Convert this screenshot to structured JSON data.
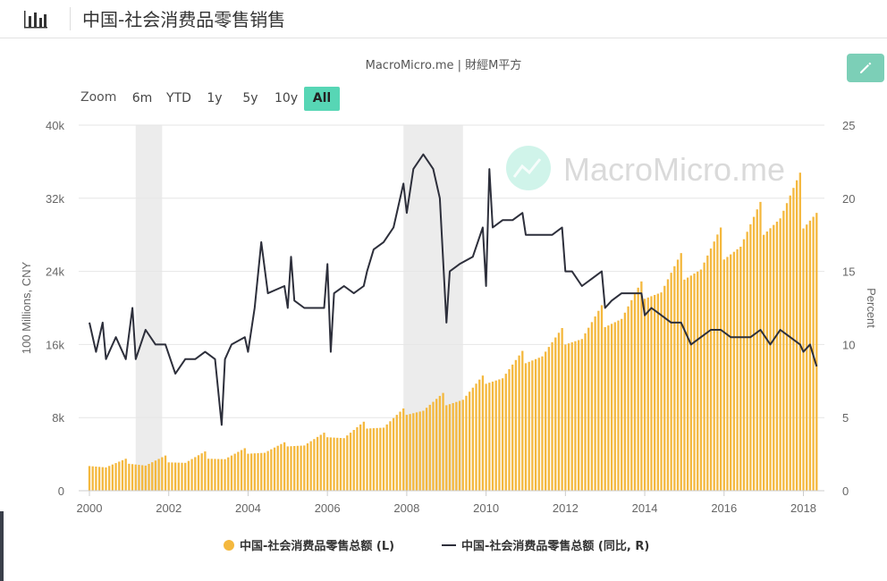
{
  "header": {
    "title": "中国-社会消费品零售销售",
    "chart_icon": "bar-chart-icon"
  },
  "source_label": "MacroMicro.me | 財經M平方",
  "watermark": "MacroMicro.me",
  "edit_icon": "pencil-icon",
  "zoom": {
    "label": "Zoom",
    "buttons": [
      "6m",
      "YTD",
      "1y",
      "5y",
      "10y",
      "All"
    ],
    "active": "All"
  },
  "colors": {
    "bars": "#f4b83e",
    "line": "#2d2f3b",
    "recession": "#e6e6e6",
    "accent": "#57d6b5"
  },
  "chart_data": {
    "type": "bar+line",
    "xlabel": "",
    "ylabel_left": "100 Millions, CNY",
    "ylabel_right": "Percent",
    "x_ticks": [
      "2000",
      "2002",
      "2004",
      "2006",
      "2008",
      "2010",
      "2012",
      "2014",
      "2016",
      "2018"
    ],
    "y_left_ticks": [
      "0",
      "8k",
      "16k",
      "24k",
      "32k",
      "40k"
    ],
    "y_right_ticks": [
      "0",
      "5",
      "10",
      "15",
      "20",
      "25"
    ],
    "ylim_left": [
      0,
      40000
    ],
    "ylim_right": [
      0,
      25
    ],
    "xlim": [
      "2000-01",
      "2018-06"
    ],
    "shaded_periods": [
      [
        "2001-03",
        "2001-11"
      ],
      [
        "2007-12",
        "2009-06"
      ]
    ],
    "legend": [
      "中国-社会消费品零售总额 (L)",
      "中国-社会消费品零售总额 (同比, R)"
    ],
    "series": [
      {
        "name": "中国-社会消费品零售总额 (L)",
        "axis": "left",
        "kind": "bar",
        "points": [
          [
            "2000-01",
            2700
          ],
          [
            "2000-06",
            2550
          ],
          [
            "2000-12",
            3500
          ],
          [
            "2001-01",
            2950
          ],
          [
            "2001-06",
            2750
          ],
          [
            "2001-12",
            3850
          ],
          [
            "2002-01",
            3100
          ],
          [
            "2002-06",
            3050
          ],
          [
            "2002-12",
            4300
          ],
          [
            "2003-01",
            3500
          ],
          [
            "2003-06",
            3450
          ],
          [
            "2003-12",
            4650
          ],
          [
            "2004-01",
            4050
          ],
          [
            "2004-06",
            4150
          ],
          [
            "2004-12",
            5300
          ],
          [
            "2005-01",
            4850
          ],
          [
            "2005-06",
            4950
          ],
          [
            "2005-12",
            6350
          ],
          [
            "2006-01",
            5850
          ],
          [
            "2006-06",
            5750
          ],
          [
            "2006-12",
            7550
          ],
          [
            "2007-01",
            6800
          ],
          [
            "2007-06",
            6900
          ],
          [
            "2007-12",
            9000
          ],
          [
            "2008-01",
            8300
          ],
          [
            "2008-06",
            8750
          ],
          [
            "2008-12",
            10700
          ],
          [
            "2009-01",
            9350
          ],
          [
            "2009-06",
            9950
          ],
          [
            "2009-12",
            12600
          ],
          [
            "2010-01",
            11700
          ],
          [
            "2010-06",
            12300
          ],
          [
            "2010-12",
            15300
          ],
          [
            "2011-01",
            13950
          ],
          [
            "2011-06",
            14700
          ],
          [
            "2011-12",
            17800
          ],
          [
            "2012-01",
            16000
          ],
          [
            "2012-06",
            16600
          ],
          [
            "2012-12",
            20300
          ],
          [
            "2013-01",
            17900
          ],
          [
            "2013-06",
            18800
          ],
          [
            "2013-12",
            22900
          ],
          [
            "2014-01",
            21000
          ],
          [
            "2014-06",
            21700
          ],
          [
            "2014-12",
            26000
          ],
          [
            "2015-01",
            23100
          ],
          [
            "2015-06",
            24200
          ],
          [
            "2015-12",
            28800
          ],
          [
            "2016-01",
            25300
          ],
          [
            "2016-06",
            26700
          ],
          [
            "2016-12",
            31600
          ],
          [
            "2017-01",
            28000
          ],
          [
            "2017-06",
            29800
          ],
          [
            "2017-12",
            34800
          ],
          [
            "2018-01",
            28700
          ],
          [
            "2018-05",
            30400
          ]
        ]
      },
      {
        "name": "中国-社会消费品零售总额 (同比, R)",
        "axis": "right",
        "kind": "line",
        "points": [
          [
            "2000-01",
            11.5
          ],
          [
            "2000-03",
            9.5
          ],
          [
            "2000-05",
            11.5
          ],
          [
            "2000-06",
            9.0
          ],
          [
            "2000-09",
            10.5
          ],
          [
            "2000-12",
            9.0
          ],
          [
            "2001-02",
            12.5
          ],
          [
            "2001-03",
            9.0
          ],
          [
            "2001-06",
            11.0
          ],
          [
            "2001-09",
            10.0
          ],
          [
            "2001-12",
            10.0
          ],
          [
            "2002-03",
            8.0
          ],
          [
            "2002-06",
            9.0
          ],
          [
            "2002-09",
            9.0
          ],
          [
            "2002-12",
            9.5
          ],
          [
            "2003-03",
            9.0
          ],
          [
            "2003-05",
            4.5
          ],
          [
            "2003-06",
            9.0
          ],
          [
            "2003-08",
            10.0
          ],
          [
            "2003-12",
            10.5
          ],
          [
            "2004-01",
            9.5
          ],
          [
            "2004-03",
            12.5
          ],
          [
            "2004-05",
            17.0
          ],
          [
            "2004-07",
            13.5
          ],
          [
            "2004-12",
            14.0
          ],
          [
            "2005-01",
            12.5
          ],
          [
            "2005-02",
            16.0
          ],
          [
            "2005-03",
            13.0
          ],
          [
            "2005-06",
            12.5
          ],
          [
            "2005-09",
            12.5
          ],
          [
            "2005-12",
            12.5
          ],
          [
            "2006-01",
            15.5
          ],
          [
            "2006-02",
            9.5
          ],
          [
            "2006-03",
            13.5
          ],
          [
            "2006-06",
            14.0
          ],
          [
            "2006-09",
            13.5
          ],
          [
            "2006-12",
            14.0
          ],
          [
            "2007-01",
            15.0
          ],
          [
            "2007-03",
            16.5
          ],
          [
            "2007-06",
            17.0
          ],
          [
            "2007-09",
            18.0
          ],
          [
            "2007-12",
            21.0
          ],
          [
            "2008-01",
            19.0
          ],
          [
            "2008-03",
            22.0
          ],
          [
            "2008-06",
            23.0
          ],
          [
            "2008-09",
            22.0
          ],
          [
            "2008-11",
            20.0
          ],
          [
            "2009-01",
            11.5
          ],
          [
            "2009-02",
            15.0
          ],
          [
            "2009-05",
            15.5
          ],
          [
            "2009-09",
            16.0
          ],
          [
            "2009-12",
            18.0
          ],
          [
            "2010-01",
            14.0
          ],
          [
            "2010-02",
            22.0
          ],
          [
            "2010-03",
            18.0
          ],
          [
            "2010-06",
            18.5
          ],
          [
            "2010-09",
            18.5
          ],
          [
            "2010-12",
            19.0
          ],
          [
            "2011-01",
            17.5
          ],
          [
            "2011-03",
            17.5
          ],
          [
            "2011-06",
            17.5
          ],
          [
            "2011-09",
            17.5
          ],
          [
            "2011-12",
            18.0
          ],
          [
            "2012-01",
            15.0
          ],
          [
            "2012-03",
            15.0
          ],
          [
            "2012-06",
            14.0
          ],
          [
            "2012-09",
            14.5
          ],
          [
            "2012-12",
            15.0
          ],
          [
            "2013-01",
            12.5
          ],
          [
            "2013-03",
            13.0
          ],
          [
            "2013-06",
            13.5
          ],
          [
            "2013-09",
            13.5
          ],
          [
            "2013-12",
            13.5
          ],
          [
            "2014-01",
            12.0
          ],
          [
            "2014-03",
            12.5
          ],
          [
            "2014-06",
            12.0
          ],
          [
            "2014-09",
            11.5
          ],
          [
            "2014-12",
            11.5
          ],
          [
            "2015-03",
            10.0
          ],
          [
            "2015-06",
            10.5
          ],
          [
            "2015-09",
            11.0
          ],
          [
            "2015-12",
            11.0
          ],
          [
            "2016-03",
            10.5
          ],
          [
            "2016-06",
            10.5
          ],
          [
            "2016-09",
            10.5
          ],
          [
            "2016-12",
            11.0
          ],
          [
            "2017-03",
            10.0
          ],
          [
            "2017-06",
            11.0
          ],
          [
            "2017-09",
            10.5
          ],
          [
            "2017-12",
            10.0
          ],
          [
            "2018-01",
            9.5
          ],
          [
            "2018-03",
            10.0
          ],
          [
            "2018-05",
            8.5
          ]
        ]
      }
    ]
  }
}
